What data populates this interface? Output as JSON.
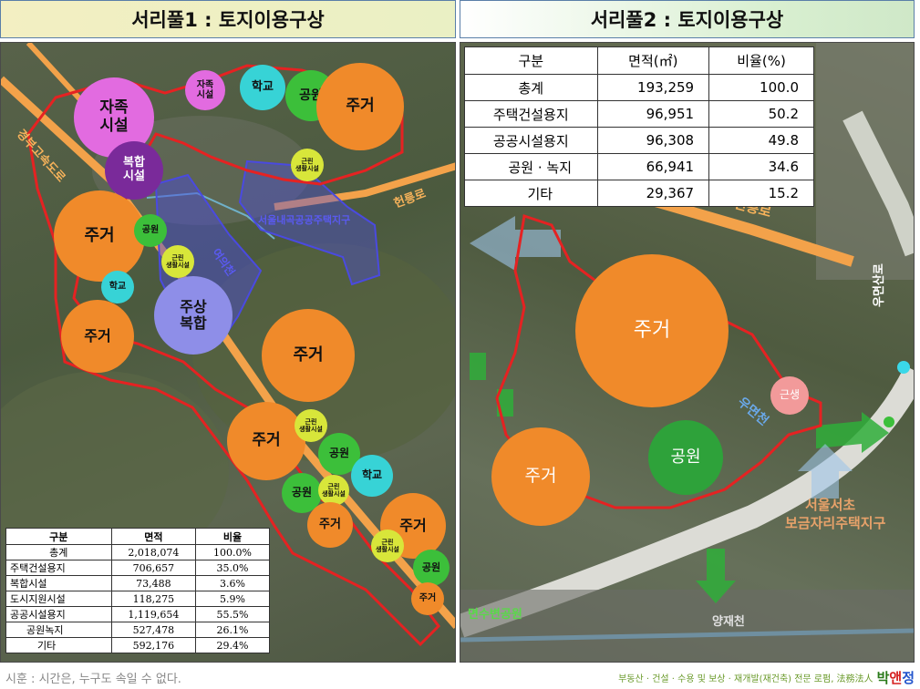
{
  "left": {
    "title": "서리풀1 : 토지이용구상",
    "bubbles": {
      "self_sufficient_large": "자족\n시설",
      "self_sufficient_small": "자족\n시설",
      "school_top": "학교",
      "park_top": "공원",
      "housing_top_right": "주거",
      "complex": "복합\n시설",
      "neighborhood_1": "근린\n생활시설",
      "housing_left": "주거",
      "park_left": "공원",
      "neighborhood_2": "근린\n생활시설",
      "school_left": "학교",
      "mixed_residential": "주상\n복합",
      "housing_lower_left": "주거",
      "housing_center": "주거",
      "housing_lower_center": "주거",
      "neighborhood_3": "근린\n생활시설",
      "park_mid": "공원",
      "school_mid": "학교",
      "park_lower": "공원",
      "neighborhood_4": "근린\n생활시설",
      "housing_bottom_small": "주거",
      "housing_bottom_right": "주거",
      "neighborhood_5": "근린\n생활시설",
      "park_bottom": "공원",
      "housing_bottom_tiny": "주거"
    },
    "labels": {
      "expressway": "경부고속도로",
      "road_right": "헌릉로",
      "district": "서울내곡공공주택지구",
      "stream": "여의천"
    },
    "table": {
      "headers": [
        "구분",
        "면적",
        "비율"
      ],
      "rows": [
        {
          "name": "총계",
          "area": "2,018,074",
          "ratio": "100.0%"
        },
        {
          "name": "주택건설용지",
          "area": "706,657",
          "ratio": "35.0%"
        },
        {
          "name": "복합시설",
          "area": "73,488",
          "ratio": "3.6%"
        },
        {
          "name": "도시지원시설",
          "area": "118,275",
          "ratio": "5.9%"
        },
        {
          "name": "공공시설용지",
          "area": "1,119,654",
          "ratio": "55.5%"
        },
        {
          "name": "공원녹지",
          "area": "527,478",
          "ratio": "26.1%"
        },
        {
          "name": "기타",
          "area": "592,176",
          "ratio": "29.4%"
        }
      ]
    }
  },
  "right": {
    "title": "서리풀2 : 토지이용구상",
    "bubbles": {
      "housing_large": "주거",
      "housing_small": "주거",
      "park": "공원",
      "neighborhood": "근생"
    },
    "labels": {
      "road_top": "헌릉로",
      "road_right": "우면산로",
      "stream_center": "우면천",
      "district_line1": "서울서초",
      "district_line2": "보금자리주택지구",
      "park_bottom": "면수변공원",
      "stream_bottom": "양재천"
    },
    "table": {
      "headers": [
        "구분",
        "면적(㎡)",
        "비율(%)"
      ],
      "rows": [
        {
          "name": "총계",
          "area": "193,259",
          "ratio": "100.0"
        },
        {
          "name": "주택건설용지",
          "area": "96,951",
          "ratio": "50.2"
        },
        {
          "name": "공공시설용지",
          "area": "96,308",
          "ratio": "49.8"
        },
        {
          "name": "공원 · 녹지",
          "area": "66,941",
          "ratio": "34.6"
        },
        {
          "name": "기타",
          "area": "29,367",
          "ratio": "15.2"
        }
      ]
    }
  },
  "footer": {
    "source": "시훈 : 시간은, 누구도 속일 수 없다.",
    "tagline": "부동산 · 건설 · 수용 및 보상 · 재개발(재건축) 전문 로펌, 法務法人",
    "brand_1": "박",
    "brand_2": "앤",
    "brand_3": "정"
  },
  "colors": {
    "boundary": "#e52222",
    "housing": "#f08a2a",
    "park": "#3cbf3a",
    "school": "#37d3d6",
    "self_sufficient": "#e26be0",
    "complex": "#7a2a9a",
    "neighborhood": "#d8e63a",
    "mixed": "#8e8ee8",
    "district_area": "#3a3ad8",
    "road": "#f3a24a"
  }
}
